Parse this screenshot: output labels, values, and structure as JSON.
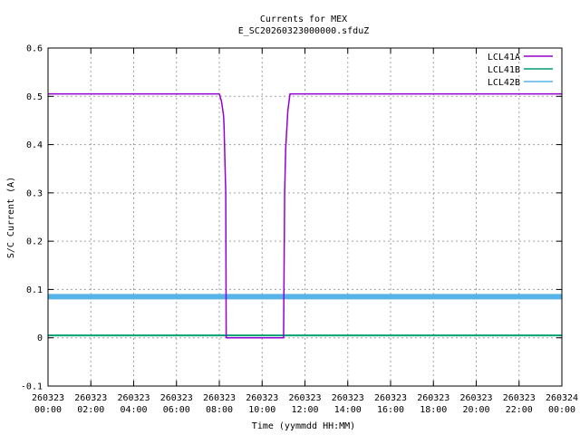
{
  "chart_data": {
    "type": "line",
    "title": "Currents for MEX",
    "subtitle": "E_SC20260323000000.sfduZ",
    "xlabel": "Time (yymmdd HH:MM)",
    "ylabel": "S/C Current (A)",
    "ylim": [
      -0.1,
      0.6
    ],
    "xlim_hours": [
      0,
      24
    ],
    "y_ticks": [
      "-0.1",
      "0",
      "0.1",
      "0.2",
      "0.3",
      "0.4",
      "0.5",
      "0.6"
    ],
    "x_ticks": [
      {
        "date": "260323",
        "time": "00:00"
      },
      {
        "date": "260323",
        "time": "02:00"
      },
      {
        "date": "260323",
        "time": "04:00"
      },
      {
        "date": "260323",
        "time": "06:00"
      },
      {
        "date": "260323",
        "time": "08:00"
      },
      {
        "date": "260323",
        "time": "10:00"
      },
      {
        "date": "260323",
        "time": "12:00"
      },
      {
        "date": "260323",
        "time": "14:00"
      },
      {
        "date": "260323",
        "time": "16:00"
      },
      {
        "date": "260323",
        "time": "18:00"
      },
      {
        "date": "260323",
        "time": "20:00"
      },
      {
        "date": "260323",
        "time": "22:00"
      },
      {
        "date": "260324",
        "time": "00:00"
      }
    ],
    "grid": true,
    "legend_position": "top-right",
    "series": [
      {
        "name": "LCL41A",
        "color": "#9400d3",
        "x_hours": [
          0,
          1,
          2,
          3,
          4,
          5,
          6,
          7,
          7.5,
          8.0,
          8.1,
          8.2,
          8.22,
          8.3,
          8.32,
          9,
          10,
          11,
          11.0,
          11.05,
          11.1,
          11.2,
          11.3,
          12,
          13,
          14,
          15,
          16,
          17,
          18,
          19,
          20,
          21,
          22,
          23,
          24
        ],
        "values": [
          0.505,
          0.505,
          0.505,
          0.505,
          0.505,
          0.505,
          0.505,
          0.505,
          0.505,
          0.505,
          0.49,
          0.46,
          0.44,
          0.3,
          0.0,
          0.0,
          0.0,
          0.0,
          0.0,
          0.3,
          0.39,
          0.47,
          0.505,
          0.505,
          0.505,
          0.505,
          0.505,
          0.505,
          0.505,
          0.505,
          0.505,
          0.505,
          0.505,
          0.505,
          0.505,
          0.505
        ]
      },
      {
        "name": "LCL41B",
        "color": "#009e73",
        "x_hours": [
          0,
          24
        ],
        "values": [
          0.005,
          0.005
        ]
      },
      {
        "name": "LCL42B",
        "color": "#56b4e9",
        "x_hours": [
          0,
          24
        ],
        "values": [
          0.085,
          0.085
        ]
      }
    ]
  }
}
